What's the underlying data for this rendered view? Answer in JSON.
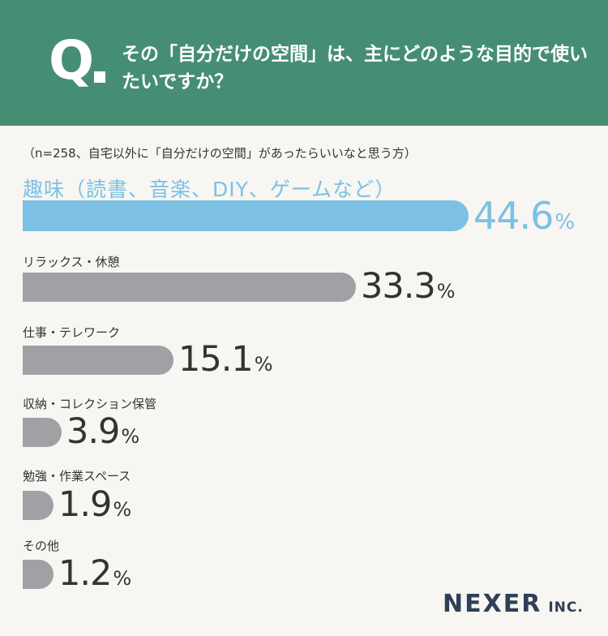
{
  "header": {
    "q_mark": "Q",
    "question": "その「自分だけの空間」は、主にどのような目的で使いたいですか？"
  },
  "note": "（n=258、自宅以外に「自分だけの空間」があったらいいなと思う方）",
  "colors": {
    "header_bg": "#468e73",
    "highlight": "#7cc0e4",
    "bar": "#a1a1a5",
    "background": "#f7f6f2",
    "logo": "#2f3f58"
  },
  "chart_data": {
    "type": "bar",
    "orientation": "horizontal",
    "categories": [
      "趣味（読書、音楽、DIY、ゲームなど）",
      "リラックス・休憩",
      "仕事・テレワーク",
      "収納・コレクション保管",
      "勉強・作業スペース",
      "その他"
    ],
    "values": [
      44.6,
      33.3,
      15.1,
      3.9,
      1.9,
      1.2
    ],
    "value_labels": [
      "44.6",
      "33.3",
      "15.1",
      "3.9",
      "1.9",
      "1.2"
    ],
    "unit": "%",
    "highlight_index": 0
  },
  "logo": {
    "name": "NEXER",
    "suffix": "INC."
  }
}
